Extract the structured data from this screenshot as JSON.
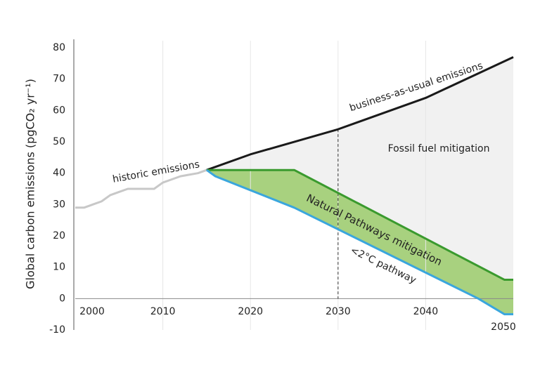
{
  "chart_data": {
    "type": "line",
    "ylabel": "Global carbon emissions (pgCO₂ yr⁻¹)",
    "xlim": [
      2000,
      2050
    ],
    "xticks": [
      2000,
      2010,
      2020,
      2030,
      2040,
      2050
    ],
    "ylim": [
      -10,
      80
    ],
    "yticks": [
      -10,
      0,
      10,
      20,
      30,
      40,
      50,
      60,
      70,
      80
    ],
    "grid": true,
    "series": [
      {
        "name": "historic emissions",
        "color": "#c8c8c8",
        "x": [
          2000,
          2001,
          2002,
          2003,
          2004,
          2005,
          2006,
          2007,
          2008,
          2009,
          2010,
          2011,
          2012,
          2013,
          2014,
          2015
        ],
        "values": [
          29,
          29,
          30,
          31,
          33,
          34,
          35,
          35,
          35,
          35,
          37,
          38,
          39,
          39.5,
          40,
          41
        ]
      },
      {
        "name": "business-as-usual emissions",
        "color": "#1a1a1a",
        "x": [
          2015,
          2020,
          2030,
          2040,
          2050
        ],
        "values": [
          41,
          46,
          54,
          64,
          77
        ]
      },
      {
        "name": "Natural Pathways mitigation",
        "color": "#3a9a2e",
        "x": [
          2015,
          2025,
          2049,
          2050
        ],
        "values": [
          41,
          41,
          6,
          6
        ]
      },
      {
        "name": "<2°C pathway",
        "color": "#3aa6dd",
        "x": [
          2015,
          2016,
          2025,
          2046,
          2049,
          2050
        ],
        "values": [
          41,
          39,
          29,
          0,
          -5,
          -5
        ]
      }
    ],
    "annotations": {
      "fossil": "Fossil fuel mitigation",
      "marker_year": 2030
    }
  }
}
